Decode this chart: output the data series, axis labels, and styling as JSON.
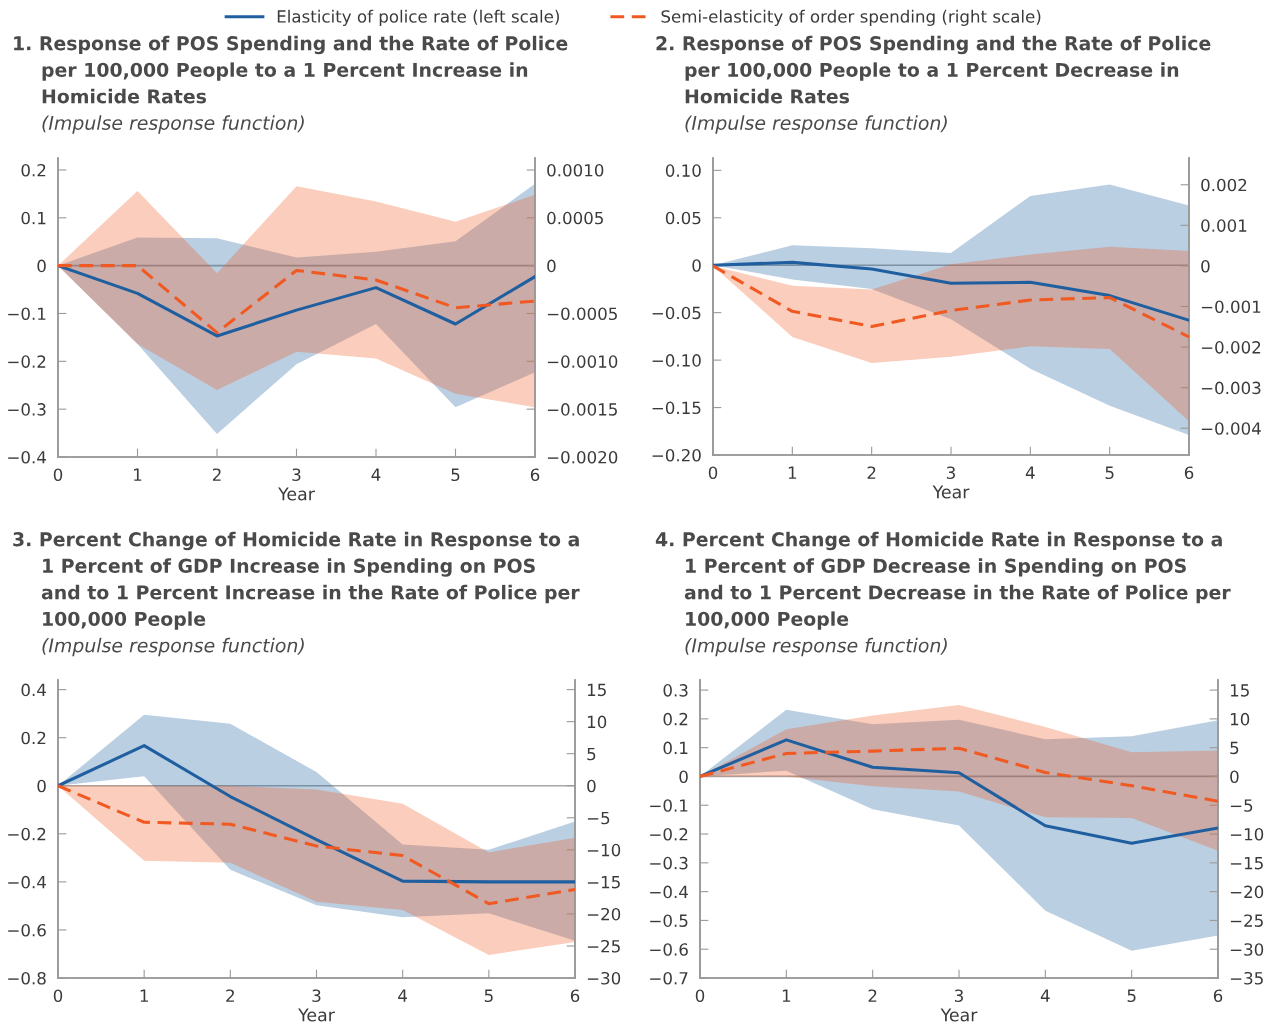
{
  "chart_data": [
    {
      "type": "line",
      "title": "1. Response of POS Spending and the Rate of Police\nper 100,000 People to a 1 Percent Increase in\nHomicide Rates",
      "subtitle": "(Impulse response function)",
      "xlabel": "Year",
      "legend": "top",
      "x": [
        0,
        1,
        2,
        3,
        4,
        5,
        6
      ],
      "xlim": [
        0,
        6
      ],
      "xticks": [
        0,
        1,
        2,
        3,
        4,
        5,
        6
      ],
      "ylim": [
        -0.4,
        0.225
      ],
      "yticks": [
        {
          "value": -0.4,
          "label": "−0.4"
        },
        {
          "value": -0.3,
          "label": "−0.3"
        },
        {
          "value": -0.2,
          "label": "−0.2"
        },
        {
          "value": -0.1,
          "label": "−0.1"
        },
        0,
        0.1,
        0.2
      ],
      "y2lim": [
        -0.002,
        0.001125
      ],
      "y2ticks": [
        {
          "value": -0.002,
          "label": "−0.0020"
        },
        {
          "value": -0.0015,
          "label": "−0.0015"
        },
        {
          "value": -0.001,
          "label": "−0.0010"
        },
        {
          "value": -0.0005,
          "label": "−0.0005"
        },
        0,
        {
          "value": 0.0005,
          "label": "0.0005"
        },
        {
          "value": 0.001,
          "label": "0.0010"
        }
      ],
      "ref_lines": [
        {
          "axis": "y",
          "value": 0,
          "color": "#a6a6a6"
        }
      ],
      "series": [
        {
          "name": "Elasticity of police rate (left scale)",
          "color": "#1f5fa0",
          "line_style": "solid",
          "values": [
            0,
            -0.058,
            -0.147,
            -0.093,
            -0.046,
            -0.122,
            -0.023
          ],
          "lower": [
            0,
            -0.164,
            -0.352,
            -0.206,
            -0.122,
            -0.296,
            -0.223
          ],
          "upper": [
            0,
            0.059,
            0.057,
            0.017,
            0.029,
            0.051,
            0.171
          ]
        },
        {
          "name": "Semi-elasticity of order spending (right scale)",
          "color": "#f05a22",
          "line_style": "dashed",
          "axis": "y2",
          "values": [
            0,
            0,
            -0.0007,
            -5e-05,
            -0.00015,
            -0.00044,
            -0.00037
          ],
          "lower": [
            0,
            -0.00082,
            -0.0013,
            -0.0009,
            -0.00097,
            -0.00134,
            -0.00148
          ],
          "upper": [
            0,
            0.00078,
            -8e-05,
            0.00083,
            0.00067,
            0.00046,
            0.00074
          ]
        }
      ]
    },
    {
      "type": "line",
      "title": "2. Response of POS Spending and the Rate of Police\nper 100,000 People to a 1 Percent Decrease in\nHomicide Rates",
      "subtitle": "(Impulse response function)",
      "xlabel": "Year",
      "x": [
        0,
        1,
        2,
        3,
        4,
        5,
        6
      ],
      "xlim": [
        0,
        6
      ],
      "xticks": [
        0,
        1,
        2,
        3,
        4,
        5,
        6
      ],
      "ylim": [
        -0.2,
        0.113
      ],
      "yticks": [
        {
          "value": -0.2,
          "label": "−0.20"
        },
        {
          "value": -0.15,
          "label": "−0.15"
        },
        {
          "value": -0.1,
          "label": "−0.10"
        },
        {
          "value": -0.05,
          "label": "−0.05"
        },
        0,
        0.05,
        {
          "value": 0.1,
          "label": "0.10"
        }
      ],
      "y2lim": [
        -0.00466,
        0.00266
      ],
      "y2ticks": [
        {
          "value": -0.004,
          "label": "−0.004"
        },
        {
          "value": -0.003,
          "label": "−0.003"
        },
        {
          "value": -0.002,
          "label": "−0.002"
        },
        {
          "value": -0.001,
          "label": "−0.001"
        },
        0,
        0.001,
        0.002
      ],
      "ref_lines": [
        {
          "axis": "y",
          "value": 0,
          "color": "#a6a6a6"
        }
      ],
      "series": [
        {
          "color": "#1f5fa0",
          "line_style": "solid",
          "values": [
            0,
            0.003,
            -0.004,
            -0.019,
            -0.018,
            -0.032,
            -0.058
          ],
          "lower": [
            0,
            -0.015,
            -0.025,
            -0.057,
            -0.109,
            -0.148,
            -0.179
          ],
          "upper": [
            0,
            0.021,
            0.018,
            0.013,
            0.073,
            0.085,
            0.063
          ]
        },
        {
          "color": "#f05a22",
          "line_style": "dashed",
          "axis": "y2",
          "values": [
            0,
            -0.00112,
            -0.00149,
            -0.0011,
            -0.00084,
            -0.00078,
            -0.00175
          ],
          "lower": [
            0,
            -0.00175,
            -0.00239,
            -0.00224,
            -0.00198,
            -0.00205,
            -0.00383
          ],
          "upper": [
            0,
            -0.00049,
            -0.00058,
            4e-05,
            0.00028,
            0.00047,
            0.00037
          ]
        }
      ]
    },
    {
      "type": "line",
      "title": "3. Percent Change of Homicide Rate in Response to a\n1 Percent of GDP Increase in Spending on POS\nand to 1 Percent Increase in the Rate of Police per\n100,000 People",
      "subtitle": "(Impulse response function)",
      "xlabel": "Year",
      "x": [
        0,
        1,
        2,
        3,
        4,
        5,
        6
      ],
      "xlim": [
        0,
        6
      ],
      "xticks": [
        0,
        1,
        2,
        3,
        4,
        5,
        6
      ],
      "ylim": [
        -0.8,
        0.44
      ],
      "yticks": [
        {
          "value": -0.8,
          "label": "−0.8"
        },
        {
          "value": -0.6,
          "label": "−0.6"
        },
        {
          "value": -0.4,
          "label": "−0.4"
        },
        {
          "value": -0.2,
          "label": "−0.2"
        },
        0,
        0.2,
        0.4
      ],
      "y2lim": [
        -30,
        16.5
      ],
      "y2ticks": [
        {
          "value": -30,
          "label": "−30"
        },
        {
          "value": -25,
          "label": "−25"
        },
        {
          "value": -20,
          "label": "−20"
        },
        {
          "value": -15,
          "label": "−15"
        },
        {
          "value": -10,
          "label": "−10"
        },
        {
          "value": -5,
          "label": "−5"
        },
        0,
        5,
        10,
        15
      ],
      "ref_lines": [
        {
          "axis": "y",
          "value": 0,
          "color": "#a6a6a6"
        }
      ],
      "series": [
        {
          "color": "#1f5fa0",
          "line_style": "solid",
          "values": [
            0,
            0.167,
            -0.045,
            -0.224,
            -0.397,
            -0.4,
            -0.4
          ],
          "lower": [
            0,
            0.04,
            -0.35,
            -0.497,
            -0.547,
            -0.531,
            -0.645
          ],
          "upper": [
            0,
            0.295,
            0.258,
            0.057,
            -0.244,
            -0.266,
            -0.149
          ]
        },
        {
          "color": "#f05a22",
          "line_style": "dashed",
          "axis": "y2",
          "values": [
            0,
            -5.7,
            -6.0,
            -9.4,
            -10.9,
            -18.4,
            -16.2
          ],
          "lower": [
            0,
            -11.7,
            -12.0,
            -18.1,
            -19.4,
            -26.4,
            -24.4
          ],
          "upper": [
            0,
            0,
            0,
            -0.6,
            -2.8,
            -10.4,
            -8.1
          ]
        }
      ]
    },
    {
      "type": "line",
      "title": "4. Percent Change of Homicide Rate in Response to a\n1 Percent of GDP Decrease in Spending on POS\nand to 1 Percent Decrease in the Rate of Police per\n100,000 People",
      "subtitle": "(Impulse response function)",
      "xlabel": "Year",
      "x": [
        0,
        1,
        2,
        3,
        4,
        5,
        6
      ],
      "xlim": [
        0,
        6
      ],
      "xticks": [
        0,
        1,
        2,
        3,
        4,
        5,
        6
      ],
      "ylim": [
        -0.7,
        0.335
      ],
      "yticks": [
        {
          "value": -0.7,
          "label": "−0.7"
        },
        {
          "value": -0.6,
          "label": "−0.6"
        },
        {
          "value": -0.5,
          "label": "−0.5"
        },
        {
          "value": -0.4,
          "label": "−0.4"
        },
        {
          "value": -0.3,
          "label": "−0.3"
        },
        {
          "value": -0.2,
          "label": "−0.2"
        },
        {
          "value": -0.1,
          "label": "−0.1"
        },
        0,
        0.1,
        0.2,
        0.3
      ],
      "y2lim": [
        -35,
        16.75
      ],
      "y2ticks": [
        {
          "value": -35,
          "label": "−35"
        },
        {
          "value": -30,
          "label": "−30"
        },
        {
          "value": -25,
          "label": "−25"
        },
        {
          "value": -20,
          "label": "−20"
        },
        {
          "value": -15,
          "label": "−15"
        },
        {
          "value": -10,
          "label": "−10"
        },
        {
          "value": -5,
          "label": "−5"
        },
        0,
        5,
        10,
        15
      ],
      "ref_lines": [
        {
          "axis": "y",
          "value": 0,
          "color": "#a6a6a6"
        }
      ],
      "series": [
        {
          "color": "#1f5fa0",
          "line_style": "solid",
          "values": [
            0,
            0.127,
            0.032,
            0.013,
            -0.171,
            -0.232,
            -0.179
          ],
          "lower": [
            0,
            0.02,
            -0.114,
            -0.17,
            -0.466,
            -0.605,
            -0.552
          ],
          "upper": [
            0,
            0.232,
            0.181,
            0.197,
            0.129,
            0.14,
            0.195
          ]
        },
        {
          "color": "#f05a22",
          "line_style": "dashed",
          "axis": "y2",
          "values": [
            0,
            4.0,
            4.4,
            4.9,
            0.7,
            -1.6,
            -4.3
          ],
          "lower": [
            0,
            0,
            -1.7,
            -2.6,
            -7.1,
            -7.2,
            -12.9
          ],
          "upper": [
            0,
            8.2,
            10.6,
            12.4,
            8.6,
            4.2,
            4.5
          ]
        }
      ]
    }
  ]
}
